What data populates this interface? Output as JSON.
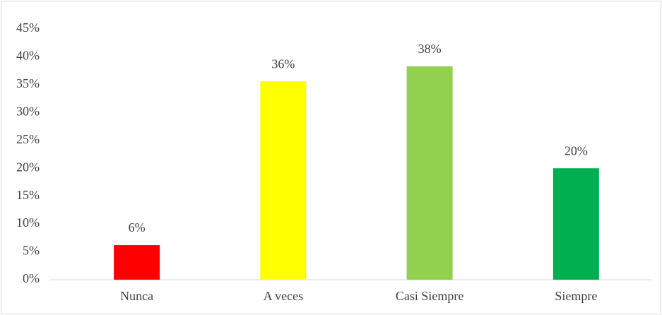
{
  "chart_data": {
    "type": "bar",
    "categories": [
      "Nunca",
      "A veces",
      "Casi Siempre",
      "Siempre"
    ],
    "values": [
      6.2,
      35.6,
      38.3,
      20
    ],
    "value_labels": [
      "6%",
      "36%",
      "38%",
      "20%"
    ],
    "colors": [
      "#ff0000",
      "#ffff00",
      "#92d050",
      "#00b050"
    ],
    "ylim": [
      0,
      45
    ],
    "yticks": [
      {
        "value": 0,
        "label": "0%"
      },
      {
        "value": 5,
        "label": "5%"
      },
      {
        "value": 10,
        "label": "10%"
      },
      {
        "value": 15,
        "label": "15%"
      },
      {
        "value": 20,
        "label": "20%"
      },
      {
        "value": 25,
        "label": "25%"
      },
      {
        "value": 30,
        "label": "30%"
      },
      {
        "value": 35,
        "label": "35%"
      },
      {
        "value": 40,
        "label": "40%"
      },
      {
        "value": 45,
        "label": "45%"
      }
    ],
    "grid": false
  }
}
